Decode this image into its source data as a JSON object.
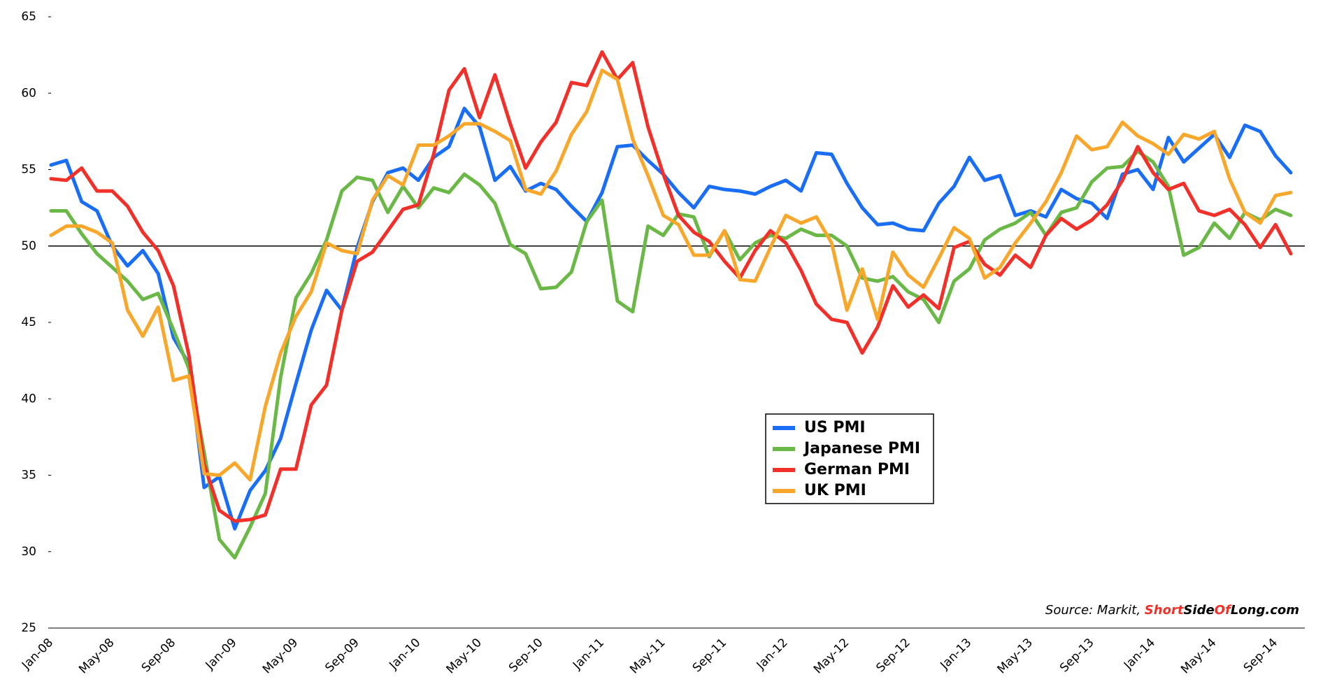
{
  "chart_data": {
    "type": "line",
    "categories": [
      "Jan-08",
      null,
      null,
      null,
      "May-08",
      null,
      null,
      null,
      "Sep-08",
      null,
      null,
      null,
      "Jan-09",
      null,
      null,
      null,
      "May-09",
      null,
      null,
      null,
      "Sep-09",
      null,
      null,
      null,
      "Jan-10",
      null,
      null,
      null,
      "May-10",
      null,
      null,
      null,
      "Sep-10",
      null,
      null,
      null,
      "Jan-11",
      null,
      null,
      null,
      "May-11",
      null,
      null,
      null,
      "Sep-11",
      null,
      null,
      null,
      "Jan-12",
      null,
      null,
      null,
      "May-12",
      null,
      null,
      null,
      "Sep-12",
      null,
      null,
      null,
      "Jan-13",
      null,
      null,
      null,
      "May-13",
      null,
      null,
      null,
      "Sep-13",
      null,
      null,
      null,
      "Jan-14",
      null,
      null,
      null,
      "May-14",
      null,
      null,
      null,
      "Sep-14",
      null
    ],
    "series": [
      {
        "name": "US PMI",
        "color": "#1a6ef5",
        "values": [
          55.3,
          55.6,
          52.9,
          52.3,
          50.0,
          48.7,
          49.7,
          48.2,
          44.0,
          42.3,
          34.2,
          34.9,
          31.5,
          34.0,
          35.3,
          37.4,
          41.0,
          44.5,
          47.1,
          45.8,
          49.9,
          52.9,
          54.8,
          55.1,
          54.3,
          55.8,
          56.5,
          59.0,
          57.8,
          54.3,
          55.2,
          53.6,
          54.1,
          53.7,
          52.6,
          51.6,
          53.5,
          56.5,
          56.6,
          55.6,
          54.7,
          53.5,
          52.5,
          53.9,
          53.7,
          53.6,
          53.4,
          53.9,
          54.3,
          53.6,
          56.1,
          56.0,
          54.1,
          52.5,
          51.4,
          51.5,
          51.1,
          51.0,
          52.8,
          53.9,
          55.8,
          54.3,
          54.6,
          52.0,
          52.3,
          51.9,
          53.7,
          53.1,
          52.8,
          51.8,
          54.7,
          55.0,
          53.7,
          57.1,
          55.5,
          56.4,
          57.3,
          55.8,
          57.9,
          57.5,
          55.9,
          54.8
        ]
      },
      {
        "name": "Japanese PMI",
        "color": "#6ab845",
        "values": [
          52.3,
          52.3,
          50.8,
          49.5,
          48.6,
          47.7,
          46.5,
          46.9,
          44.5,
          42.0,
          36.5,
          30.8,
          29.6,
          31.6,
          33.8,
          41.4,
          46.6,
          48.2,
          50.4,
          53.6,
          54.5,
          54.3,
          52.2,
          53.9,
          52.5,
          53.8,
          53.5,
          54.7,
          54.0,
          52.8,
          50.1,
          49.5,
          47.2,
          47.3,
          48.3,
          51.6,
          53.0,
          46.4,
          45.7,
          51.3,
          50.7,
          52.1,
          51.9,
          49.3,
          51.0,
          49.1,
          50.2,
          50.7,
          50.5,
          51.1,
          50.7,
          50.7,
          50.0,
          47.9,
          47.7,
          48.0,
          47.0,
          46.5,
          45.0,
          47.7,
          48.5,
          50.4,
          51.1,
          51.5,
          52.2,
          50.7,
          52.2,
          52.5,
          54.2,
          55.1,
          55.2,
          56.2,
          55.5,
          53.9,
          49.4,
          49.9,
          51.5,
          50.5,
          52.2,
          51.7,
          52.4,
          52.0
        ]
      },
      {
        "name": "German PMI",
        "color": "#f2302a",
        "values": [
          54.4,
          54.3,
          55.1,
          53.6,
          53.6,
          52.6,
          50.9,
          49.7,
          47.4,
          42.9,
          35.7,
          32.7,
          32.0,
          32.1,
          32.4,
          35.4,
          35.4,
          39.6,
          40.9,
          45.8,
          49.0,
          49.6,
          51.0,
          52.4,
          52.7,
          56.0,
          60.2,
          61.6,
          58.4,
          61.2,
          58.0,
          55.1,
          56.8,
          58.1,
          60.7,
          60.5,
          62.7,
          60.9,
          62.0,
          57.8,
          54.7,
          52.0,
          50.9,
          50.3,
          49.0,
          47.9,
          49.7,
          51.0,
          50.2,
          48.4,
          46.2,
          45.2,
          45.0,
          43.0,
          44.7,
          47.4,
          46.0,
          46.8,
          45.9,
          49.9,
          50.3,
          48.8,
          48.1,
          49.4,
          48.6,
          50.7,
          51.8,
          51.1,
          51.7,
          52.7,
          54.3,
          56.5,
          54.8,
          53.7,
          54.1,
          52.3,
          52.0,
          52.4,
          51.4,
          49.9,
          51.4,
          49.5
        ]
      },
      {
        "name": "UK PMI",
        "color": "#f9a72b",
        "values": [
          50.7,
          51.3,
          51.3,
          50.9,
          50.2,
          45.8,
          44.1,
          46.0,
          41.2,
          41.5,
          35.1,
          35.0,
          35.8,
          34.7,
          39.5,
          43.0,
          45.4,
          47.0,
          50.2,
          49.7,
          49.5,
          53.0,
          54.6,
          54.0,
          56.6,
          56.6,
          57.2,
          58.0,
          58.0,
          57.5,
          56.9,
          53.7,
          53.4,
          54.9,
          57.3,
          58.8,
          61.5,
          60.9,
          57.0,
          54.6,
          52.0,
          51.4,
          49.4,
          49.4,
          51.0,
          47.8,
          47.7,
          49.9,
          52.0,
          51.5,
          51.9,
          50.2,
          45.8,
          48.5,
          45.2,
          49.6,
          48.1,
          47.3,
          49.2,
          51.2,
          50.5,
          47.9,
          48.6,
          50.2,
          51.5,
          52.9,
          54.8,
          57.2,
          56.3,
          56.5,
          58.1,
          57.2,
          56.7,
          56.0,
          57.3,
          57.0,
          57.5,
          54.4,
          52.2,
          51.5,
          53.3,
          53.5
        ]
      }
    ],
    "ylim": [
      25,
      65
    ],
    "yticks": [
      25,
      30,
      35,
      40,
      45,
      50,
      55,
      60,
      65
    ],
    "reference_line": 50,
    "grid": false,
    "legend": "lower-center",
    "source": [
      "Source: Markit, ",
      "Short",
      "Side",
      "Of",
      "Long",
      ".com"
    ],
    "source_colors": [
      "#000000",
      "#f2302a",
      "#000000",
      "#f2302a",
      "#000000",
      "#000000"
    ]
  }
}
